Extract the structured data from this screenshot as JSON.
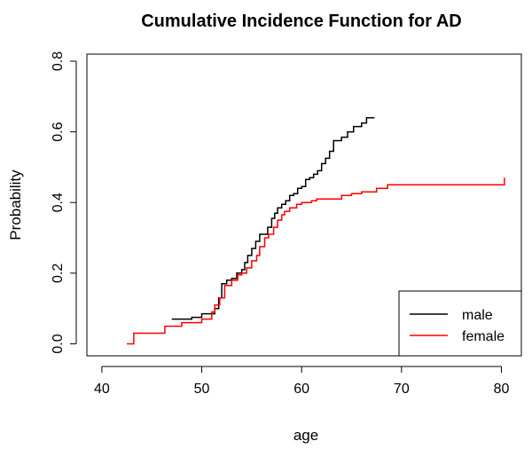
{
  "chart_data": {
    "type": "line",
    "title": "Cumulative Incidence Function for AD",
    "xlabel": "age",
    "ylabel": "Probability",
    "xlim": [
      38.5,
      82
    ],
    "ylim": [
      -0.034,
      0.82
    ],
    "xticks": [
      40,
      50,
      60,
      70,
      80
    ],
    "yticks": [
      0.0,
      0.2,
      0.4,
      0.6,
      0.8
    ],
    "ytick_labels": [
      "0.0",
      "0.2",
      "0.4",
      "0.6",
      "0.8"
    ],
    "grid": false,
    "legend": {
      "position": "bottom-right"
    },
    "series": [
      {
        "name": "male",
        "color": "#000000",
        "step": true,
        "x": [
          47.0,
          48.5,
          49.0,
          50.0,
          51.3,
          51.7,
          52.0,
          52.5,
          53.0,
          53.5,
          54.0,
          54.3,
          54.6,
          55.0,
          55.4,
          55.8,
          56.2,
          56.6,
          57.0,
          57.3,
          57.6,
          58.0,
          58.4,
          58.8,
          59.2,
          59.6,
          60.0,
          60.4,
          60.8,
          61.2,
          61.6,
          62.0,
          62.4,
          62.8,
          63.2,
          64.0,
          64.6,
          65.2,
          66.0,
          66.5,
          67.3
        ],
        "y": [
          0.07,
          0.07,
          0.075,
          0.085,
          0.1,
          0.13,
          0.17,
          0.18,
          0.185,
          0.2,
          0.21,
          0.23,
          0.25,
          0.27,
          0.29,
          0.31,
          0.31,
          0.33,
          0.355,
          0.37,
          0.385,
          0.395,
          0.405,
          0.42,
          0.425,
          0.44,
          0.445,
          0.465,
          0.47,
          0.48,
          0.49,
          0.51,
          0.525,
          0.545,
          0.575,
          0.585,
          0.6,
          0.615,
          0.625,
          0.64,
          0.64
        ]
      },
      {
        "name": "female",
        "color": "#ff0000",
        "step": true,
        "x": [
          42.5,
          43.2,
          45.6,
          46.3,
          48.0,
          50.0,
          51.0,
          51.3,
          51.8,
          52.3,
          53.0,
          53.6,
          54.0,
          54.5,
          55.0,
          55.5,
          55.8,
          56.3,
          56.7,
          57.2,
          57.6,
          58.0,
          58.3,
          58.8,
          59.5,
          60.0,
          61.0,
          61.5,
          64.0,
          65.0,
          66.0,
          67.5,
          68.6,
          74.0,
          80.3
        ],
        "y": [
          0.0,
          0.03,
          0.03,
          0.05,
          0.06,
          0.07,
          0.09,
          0.11,
          0.13,
          0.165,
          0.18,
          0.195,
          0.2,
          0.215,
          0.235,
          0.25,
          0.275,
          0.3,
          0.31,
          0.33,
          0.35,
          0.365,
          0.375,
          0.385,
          0.395,
          0.4,
          0.405,
          0.41,
          0.42,
          0.425,
          0.43,
          0.44,
          0.45,
          0.45,
          0.47
        ]
      }
    ]
  }
}
